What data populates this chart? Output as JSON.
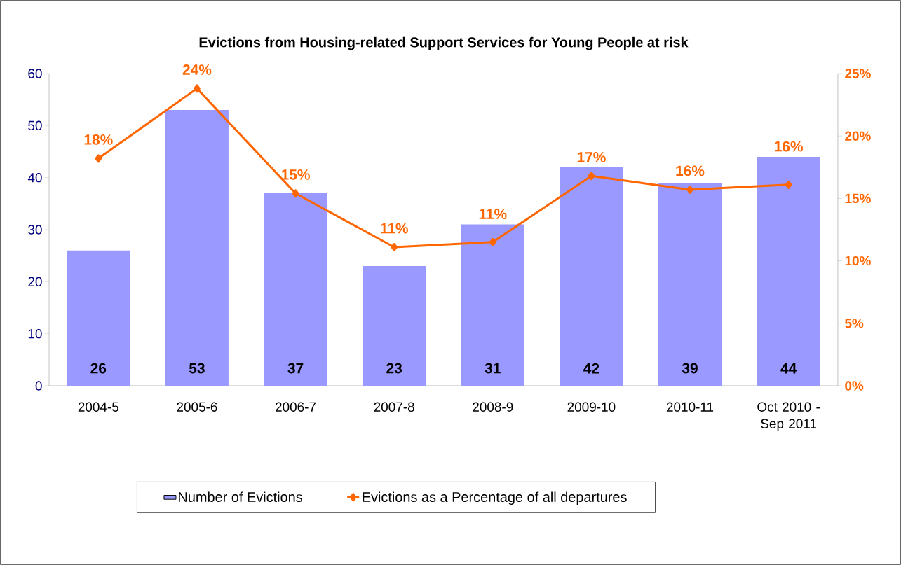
{
  "chart_data": {
    "type": "bar",
    "title": "Evictions from Housing-related Support Services for Young People at risk",
    "categories": [
      "2004-5",
      "2005-6",
      "2006-7",
      "2007-8",
      "2008-9",
      "2009-10",
      "2010-11",
      "Oct 2010 - Sep 2011"
    ],
    "series": [
      {
        "name": "Number of Evictions",
        "color": "#9999ff",
        "values": [
          26,
          53,
          37,
          23,
          31,
          42,
          39,
          44
        ],
        "value_labels": [
          "26",
          "53",
          "37",
          "23",
          "31",
          "42",
          "39",
          "44"
        ]
      },
      {
        "name": "Evictions as a Percentage of all departures",
        "type": "line",
        "axis": "y2",
        "color": "#ff6600",
        "values": [
          18.2,
          23.8,
          15.4,
          11.1,
          11.5,
          16.8,
          15.7,
          16.1
        ],
        "value_labels": [
          "18%",
          "24%",
          "15%",
          "11%",
          "11%",
          "17%",
          "16%",
          "16%"
        ]
      }
    ],
    "ylim": [
      0,
      60
    ],
    "yticks": [
      0,
      10,
      20,
      30,
      40,
      50,
      60
    ],
    "y2lim": [
      0,
      25
    ],
    "y2ticks": [
      {
        "value": 0,
        "label": "0%"
      },
      {
        "value": 5,
        "label": "5%"
      },
      {
        "value": 10,
        "label": "10%"
      },
      {
        "value": 15,
        "label": "15%"
      },
      {
        "value": 20,
        "label": "20%"
      },
      {
        "value": 25,
        "label": "25%"
      }
    ],
    "marker": "diamond",
    "legend": "bottom"
  }
}
